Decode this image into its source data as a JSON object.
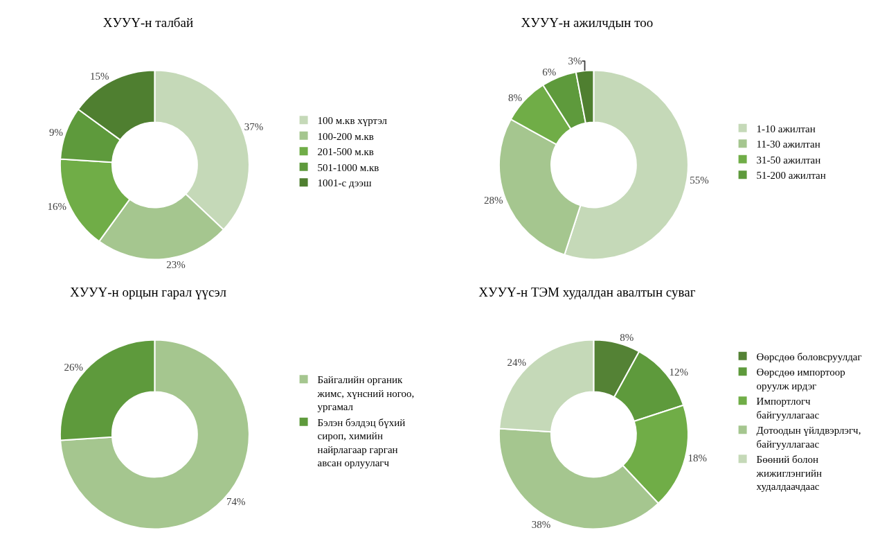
{
  "chart_data": [
    {
      "type": "donut",
      "title": "ХУУҮ-н талбай",
      "legend": "right",
      "categories": [
        "100 м.кв хүртэл",
        "100-200 м.кв",
        "201-500 м.кв",
        "501-1000 м.кв",
        "1001-с дээш"
      ],
      "values": [
        37,
        23,
        16,
        9,
        15
      ],
      "value_labels": [
        "37%",
        "23%",
        "16%",
        "9%",
        "15%"
      ],
      "colors": [
        "#c5d9b8",
        "#a5c68f",
        "#70ad47",
        "#5e9a3c",
        "#4f7f30"
      ]
    },
    {
      "type": "donut",
      "title": "ХУУҮ-н ажилчдын тоо",
      "legend": "right",
      "categories": [
        "1-10 ажилтан",
        "11-30 ажилтан",
        "31-50 ажилтан",
        "51-200 ажилтан",
        null
      ],
      "values": [
        55,
        28,
        8,
        6,
        3
      ],
      "value_labels": [
        "55%",
        "28%",
        "8%",
        "6%",
        "3%"
      ],
      "colors": [
        "#c5d9b8",
        "#a5c68f",
        "#70ad47",
        "#5e9a3c",
        "#4f7f30"
      ]
    },
    {
      "type": "donut",
      "title": "ХУУҮ-н орцын гарал үүсэл",
      "legend": "right",
      "categories": [
        "Байгалийн органик жимс, хүнсний ногоо, ургамал",
        "Бэлэн бэлдэц бүхий сироп, химийн найрлагаар гарган авсан орлуулагч"
      ],
      "values": [
        74,
        26
      ],
      "value_labels": [
        "74%",
        "26%"
      ],
      "colors": [
        "#a5c68f",
        "#5e9a3c"
      ]
    },
    {
      "type": "donut",
      "title": "ХУУҮ-н ТЭМ худалдан авалтын суваг",
      "legend": "right",
      "categories": [
        "Өөрсдөө боловсруулдаг",
        "Өөрсдөө импортоор оруулж ирдэг",
        "Импортлогч байгууллагаас",
        "Дотоодын үйлдвэрлэгч, байгууллагаас",
        "Бөөний болон жижиглэнгийн худалдаачдаас"
      ],
      "values": [
        8,
        12,
        18,
        38,
        24
      ],
      "value_labels": [
        "8%",
        "12%",
        "18%",
        "38%",
        "24%"
      ],
      "colors": [
        "#548235",
        "#5e9a3c",
        "#70ad47",
        "#a5c68f",
        "#c5d9b8"
      ]
    }
  ]
}
